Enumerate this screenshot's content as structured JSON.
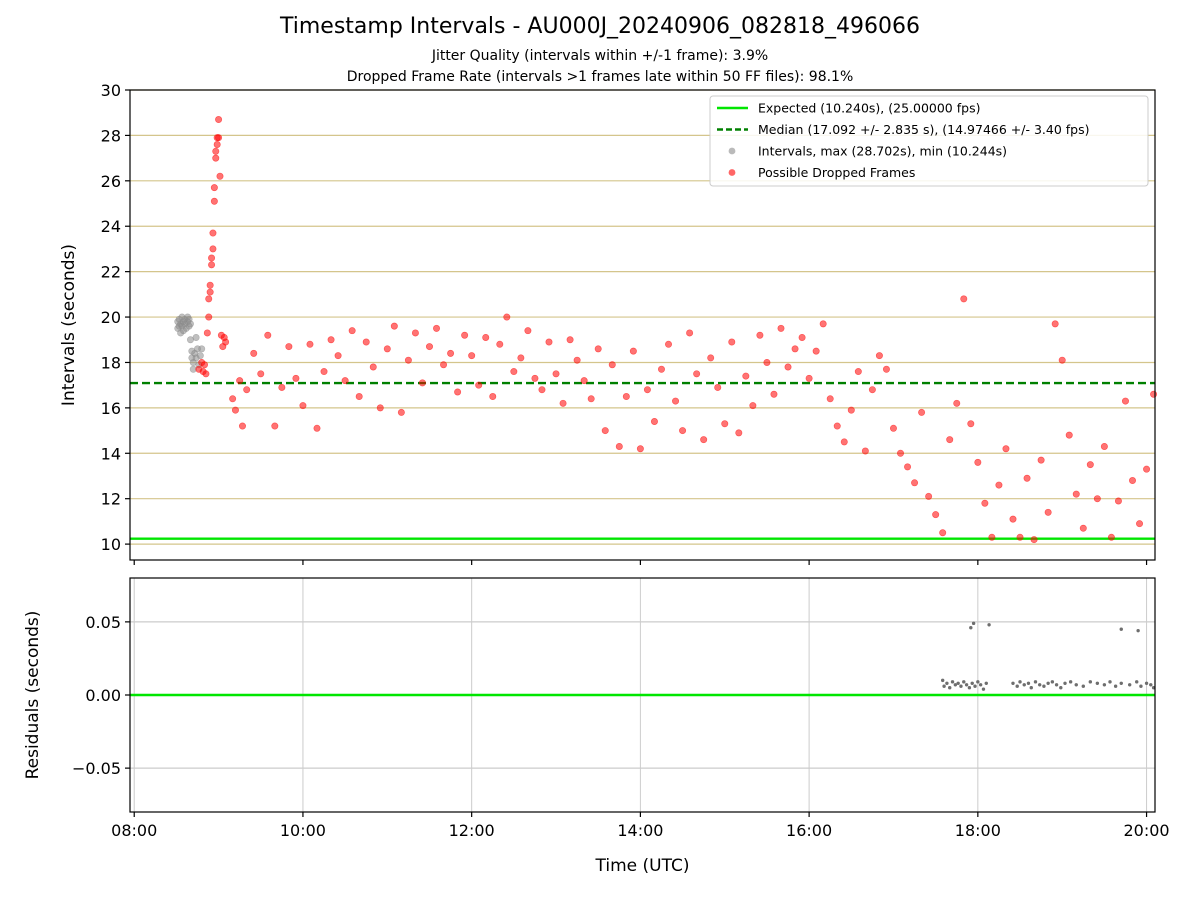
{
  "figure": {
    "title": "Timestamp Intervals - AU000J_20240906_082818_496066",
    "subtitle_1": "Jitter Quality (intervals within +/-1 frame): 3.9%",
    "subtitle_2": "Dropped Frame Rate (intervals >1 frames late within 50 FF files): 98.1%"
  },
  "chart_data": [
    {
      "type": "scatter",
      "xlabel": "",
      "ylabel": "Intervals (seconds)",
      "xlim": [
        "07:57",
        "20:06"
      ],
      "ylim": [
        9.3,
        30
      ],
      "x_ticks": [
        "08:00",
        "10:00",
        "12:00",
        "14:00",
        "16:00",
        "18:00",
        "20:00"
      ],
      "y_ticks": [
        "10",
        "12",
        "14",
        "16",
        "18",
        "20",
        "22",
        "24",
        "26",
        "28",
        "30"
      ],
      "y_tick_values": [
        10,
        12,
        14,
        16,
        18,
        20,
        22,
        24,
        26,
        28,
        30
      ],
      "grid": "horizontal",
      "grid_color": "#d4c58c",
      "legend_position": "top-right",
      "lines": [
        {
          "name": "Expected (10.240s), (25.00000 fps)",
          "y": 10.24,
          "color": "#00e600",
          "style": "solid"
        },
        {
          "name": "Median (17.092 +/- 2.835 s), (14.97466 +/- 3.40 fps)",
          "y": 17.092,
          "color": "#008000",
          "style": "dashed"
        }
      ],
      "series": [
        {
          "name": "Intervals, max (28.702s), min (10.244s)",
          "color": "#8c8c8c",
          "points": [
            [
              "08:31",
              19.5
            ],
            [
              "08:31",
              19.8
            ],
            [
              "08:32",
              19.6
            ],
            [
              "08:32",
              19.9
            ],
            [
              "08:33",
              19.7
            ],
            [
              "08:33",
              19.3
            ],
            [
              "08:34",
              19.6
            ],
            [
              "08:34",
              20.0
            ],
            [
              "08:35",
              19.8
            ],
            [
              "08:35",
              19.4
            ],
            [
              "08:36",
              19.7
            ],
            [
              "08:36",
              19.9
            ],
            [
              "08:37",
              19.5
            ],
            [
              "08:38",
              19.8
            ],
            [
              "08:38",
              20.0
            ],
            [
              "08:39",
              19.6
            ],
            [
              "08:39",
              19.9
            ],
            [
              "08:40",
              19.7
            ],
            [
              "08:40",
              19.0
            ],
            [
              "08:41",
              18.2
            ],
            [
              "08:41",
              18.5
            ],
            [
              "08:42",
              17.7
            ],
            [
              "08:42",
              18.0
            ],
            [
              "08:43",
              18.4
            ],
            [
              "08:44",
              19.1
            ],
            [
              "08:44",
              18.2
            ],
            [
              "08:45",
              18.6
            ],
            [
              "08:46",
              17.9
            ],
            [
              "08:47",
              18.3
            ],
            [
              "08:48",
              18.6
            ]
          ]
        },
        {
          "name": "Possible Dropped Frames",
          "color": "#ff0000",
          "points": [
            [
              "08:46",
              17.7
            ],
            [
              "08:48",
              18.0
            ],
            [
              "08:49",
              17.6
            ],
            [
              "08:50",
              17.9
            ],
            [
              "08:51",
              17.5
            ],
            [
              "08:52",
              19.3
            ],
            [
              "08:53",
              20.0
            ],
            [
              "08:53",
              20.8
            ],
            [
              "08:54",
              21.4
            ],
            [
              "08:54",
              21.1
            ],
            [
              "08:55",
              22.3
            ],
            [
              "08:55",
              22.6
            ],
            [
              "08:56",
              23.0
            ],
            [
              "08:56",
              23.7
            ],
            [
              "08:57",
              25.1
            ],
            [
              "08:57",
              25.7
            ],
            [
              "08:58",
              27.0
            ],
            [
              "08:58",
              27.3
            ],
            [
              "08:59",
              27.9
            ],
            [
              "08:59",
              27.6
            ],
            [
              "09:00",
              28.7
            ],
            [
              "09:00",
              27.9
            ],
            [
              "09:01",
              26.2
            ],
            [
              "09:02",
              19.2
            ],
            [
              "09:03",
              18.7
            ],
            [
              "09:04",
              19.1
            ],
            [
              "09:05",
              18.9
            ],
            [
              "09:10",
              16.4
            ],
            [
              "09:12",
              15.9
            ],
            [
              "09:15",
              17.2
            ],
            [
              "09:17",
              15.2
            ],
            [
              "09:20",
              16.8
            ],
            [
              "09:25",
              18.4
            ],
            [
              "09:30",
              17.5
            ],
            [
              "09:35",
              19.2
            ],
            [
              "09:40",
              15.2
            ],
            [
              "09:45",
              16.9
            ],
            [
              "09:50",
              18.7
            ],
            [
              "09:55",
              17.3
            ],
            [
              "10:00",
              16.1
            ],
            [
              "10:05",
              18.8
            ],
            [
              "10:10",
              15.1
            ],
            [
              "10:15",
              17.6
            ],
            [
              "10:20",
              19.0
            ],
            [
              "10:25",
              18.3
            ],
            [
              "10:30",
              17.2
            ],
            [
              "10:35",
              19.4
            ],
            [
              "10:40",
              16.5
            ],
            [
              "10:45",
              18.9
            ],
            [
              "10:50",
              17.8
            ],
            [
              "10:55",
              16.0
            ],
            [
              "11:00",
              18.6
            ],
            [
              "11:05",
              19.6
            ],
            [
              "11:10",
              15.8
            ],
            [
              "11:15",
              18.1
            ],
            [
              "11:20",
              19.3
            ],
            [
              "11:25",
              17.1
            ],
            [
              "11:30",
              18.7
            ],
            [
              "11:35",
              19.5
            ],
            [
              "11:40",
              17.9
            ],
            [
              "11:45",
              18.4
            ],
            [
              "11:50",
              16.7
            ],
            [
              "11:55",
              19.2
            ],
            [
              "12:00",
              18.3
            ],
            [
              "12:05",
              17.0
            ],
            [
              "12:10",
              19.1
            ],
            [
              "12:15",
              16.5
            ],
            [
              "12:20",
              18.8
            ],
            [
              "12:25",
              20.0
            ],
            [
              "12:30",
              17.6
            ],
            [
              "12:35",
              18.2
            ],
            [
              "12:40",
              19.4
            ],
            [
              "12:45",
              17.3
            ],
            [
              "12:50",
              16.8
            ],
            [
              "12:55",
              18.9
            ],
            [
              "13:00",
              17.5
            ],
            [
              "13:05",
              16.2
            ],
            [
              "13:10",
              19.0
            ],
            [
              "13:15",
              18.1
            ],
            [
              "13:20",
              17.2
            ],
            [
              "13:25",
              16.4
            ],
            [
              "13:30",
              18.6
            ],
            [
              "13:35",
              15.0
            ],
            [
              "13:40",
              17.9
            ],
            [
              "13:45",
              14.3
            ],
            [
              "13:50",
              16.5
            ],
            [
              "13:55",
              18.5
            ],
            [
              "14:00",
              14.2
            ],
            [
              "14:05",
              16.8
            ],
            [
              "14:10",
              15.4
            ],
            [
              "14:15",
              17.7
            ],
            [
              "14:20",
              18.8
            ],
            [
              "14:25",
              16.3
            ],
            [
              "14:30",
              15.0
            ],
            [
              "14:35",
              19.3
            ],
            [
              "14:40",
              17.5
            ],
            [
              "14:45",
              14.6
            ],
            [
              "14:50",
              18.2
            ],
            [
              "14:55",
              16.9
            ],
            [
              "15:00",
              15.3
            ],
            [
              "15:05",
              18.9
            ],
            [
              "15:10",
              14.9
            ],
            [
              "15:15",
              17.4
            ],
            [
              "15:20",
              16.1
            ],
            [
              "15:25",
              19.2
            ],
            [
              "15:30",
              18.0
            ],
            [
              "15:35",
              16.6
            ],
            [
              "15:40",
              19.5
            ],
            [
              "15:45",
              17.8
            ],
            [
              "15:50",
              18.6
            ],
            [
              "15:55",
              19.1
            ],
            [
              "16:00",
              17.3
            ],
            [
              "16:05",
              18.5
            ],
            [
              "16:10",
              19.7
            ],
            [
              "16:15",
              16.4
            ],
            [
              "16:20",
              15.2
            ],
            [
              "16:25",
              14.5
            ],
            [
              "16:30",
              15.9
            ],
            [
              "16:35",
              17.6
            ],
            [
              "16:40",
              14.1
            ],
            [
              "16:45",
              16.8
            ],
            [
              "16:50",
              18.3
            ],
            [
              "16:55",
              17.7
            ],
            [
              "17:00",
              15.1
            ],
            [
              "17:05",
              14.0
            ],
            [
              "17:10",
              13.4
            ],
            [
              "17:15",
              12.7
            ],
            [
              "17:20",
              15.8
            ],
            [
              "17:25",
              12.1
            ],
            [
              "17:30",
              11.3
            ],
            [
              "17:35",
              10.5
            ],
            [
              "17:40",
              14.6
            ],
            [
              "17:45",
              16.2
            ],
            [
              "17:50",
              20.8
            ],
            [
              "17:55",
              15.3
            ],
            [
              "18:00",
              13.6
            ],
            [
              "18:05",
              11.8
            ],
            [
              "18:10",
              10.3
            ],
            [
              "18:15",
              12.6
            ],
            [
              "18:20",
              14.2
            ],
            [
              "18:25",
              11.1
            ],
            [
              "18:30",
              10.3
            ],
            [
              "18:35",
              12.9
            ],
            [
              "18:40",
              10.2
            ],
            [
              "18:45",
              13.7
            ],
            [
              "18:50",
              11.4
            ],
            [
              "18:55",
              19.7
            ],
            [
              "19:00",
              18.1
            ],
            [
              "19:05",
              14.8
            ],
            [
              "19:10",
              12.2
            ],
            [
              "19:15",
              10.7
            ],
            [
              "19:20",
              13.5
            ],
            [
              "19:25",
              12.0
            ],
            [
              "19:30",
              14.3
            ],
            [
              "19:35",
              10.3
            ],
            [
              "19:40",
              11.9
            ],
            [
              "19:45",
              16.3
            ],
            [
              "19:50",
              12.8
            ],
            [
              "19:55",
              10.9
            ],
            [
              "20:00",
              13.3
            ],
            [
              "20:05",
              16.6
            ]
          ]
        }
      ]
    },
    {
      "type": "scatter",
      "xlabel": "Time (UTC)",
      "ylabel": "Residuals (seconds)",
      "xlim": [
        "07:57",
        "20:06"
      ],
      "ylim": [
        -0.08,
        0.08
      ],
      "x_ticks": [
        "08:00",
        "10:00",
        "12:00",
        "14:00",
        "16:00",
        "18:00",
        "20:00"
      ],
      "y_ticks": [
        "−0.05",
        "0.00",
        "0.05"
      ],
      "y_tick_values": [
        -0.05,
        0.0,
        0.05
      ],
      "grid": "both",
      "grid_color": "#cccccc",
      "lines": [
        {
          "name": "",
          "y": 0.0,
          "color": "#00e600",
          "style": "solid"
        }
      ],
      "series": [
        {
          "name": "",
          "color": "#6e6e6e",
          "points": [
            [
              "17:35",
              0.01
            ],
            [
              "17:36",
              0.006
            ],
            [
              "17:38",
              0.008
            ],
            [
              "17:40",
              0.005
            ],
            [
              "17:42",
              0.009
            ],
            [
              "17:44",
              0.007
            ],
            [
              "17:46",
              0.008
            ],
            [
              "17:48",
              0.006
            ],
            [
              "17:50",
              0.009
            ],
            [
              "17:52",
              0.007
            ],
            [
              "17:54",
              0.005
            ],
            [
              "17:56",
              0.008
            ],
            [
              "17:58",
              0.006
            ],
            [
              "18:00",
              0.009
            ],
            [
              "18:02",
              0.007
            ],
            [
              "18:04",
              0.004
            ],
            [
              "18:06",
              0.008
            ],
            [
              "17:55",
              0.046
            ],
            [
              "17:57",
              0.049
            ],
            [
              "18:08",
              0.048
            ],
            [
              "18:25",
              0.008
            ],
            [
              "18:28",
              0.006
            ],
            [
              "18:30",
              0.009
            ],
            [
              "18:33",
              0.007
            ],
            [
              "18:36",
              0.008
            ],
            [
              "18:38",
              0.005
            ],
            [
              "18:41",
              0.009
            ],
            [
              "18:44",
              0.007
            ],
            [
              "18:47",
              0.006
            ],
            [
              "18:50",
              0.008
            ],
            [
              "18:53",
              0.009
            ],
            [
              "18:56",
              0.007
            ],
            [
              "18:59",
              0.005
            ],
            [
              "19:02",
              0.008
            ],
            [
              "19:06",
              0.009
            ],
            [
              "19:10",
              0.007
            ],
            [
              "19:15",
              0.006
            ],
            [
              "19:20",
              0.009
            ],
            [
              "19:25",
              0.008
            ],
            [
              "19:30",
              0.007
            ],
            [
              "19:34",
              0.009
            ],
            [
              "19:38",
              0.006
            ],
            [
              "19:42",
              0.008
            ],
            [
              "19:48",
              0.007
            ],
            [
              "19:53",
              0.009
            ],
            [
              "19:56",
              0.006
            ],
            [
              "20:00",
              0.008
            ],
            [
              "20:03",
              0.007
            ],
            [
              "20:05",
              0.005
            ],
            [
              "19:42",
              0.045
            ],
            [
              "19:54",
              0.044
            ]
          ]
        }
      ]
    }
  ]
}
